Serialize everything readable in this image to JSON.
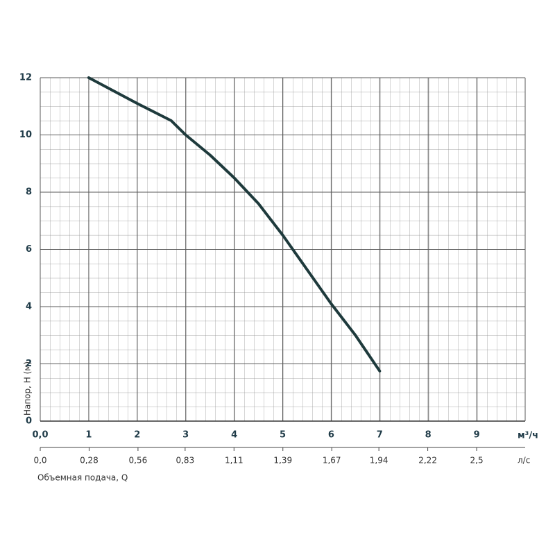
{
  "chart_data": {
    "type": "line",
    "y_label": "Напор, H (м)",
    "x_label": "Объемная подача, Q",
    "x_unit": "м³/ч",
    "x2_unit": "л/с",
    "x": [
      1,
      2,
      2.7,
      3,
      3.5,
      4,
      4.5,
      5,
      5.5,
      6,
      6.5,
      7
    ],
    "series": [
      {
        "color": "#1e3a3c",
        "values": [
          12,
          11.1,
          10.5,
          10,
          9.3,
          8.5,
          7.6,
          6.5,
          5.3,
          4.1,
          3,
          1.75
        ]
      }
    ],
    "xlim": [
      0,
      10
    ],
    "xticks": [
      {
        "value": 0,
        "label": "0,0"
      },
      1,
      2,
      3,
      4,
      5,
      6,
      7,
      8,
      9
    ],
    "ylim": [
      0,
      12
    ],
    "yticks": [
      0,
      2,
      4,
      6,
      8,
      10,
      12
    ],
    "x2lim": [
      0,
      2.778
    ],
    "x2ticks": [
      {
        "value": 0,
        "label": "0,0"
      },
      {
        "value": 0.28,
        "label": "0,28"
      },
      {
        "value": 0.56,
        "label": "0,56"
      },
      {
        "value": 0.83,
        "label": "0,83"
      },
      {
        "value": 1.11,
        "label": "1,11"
      },
      {
        "value": 1.39,
        "label": "1,39"
      },
      {
        "value": 1.67,
        "label": "1,67"
      },
      {
        "value": 1.94,
        "label": "1,94"
      },
      {
        "value": 2.22,
        "label": "2,22"
      },
      {
        "value": 2.5,
        "label": "2,5"
      }
    ],
    "grid": true
  }
}
